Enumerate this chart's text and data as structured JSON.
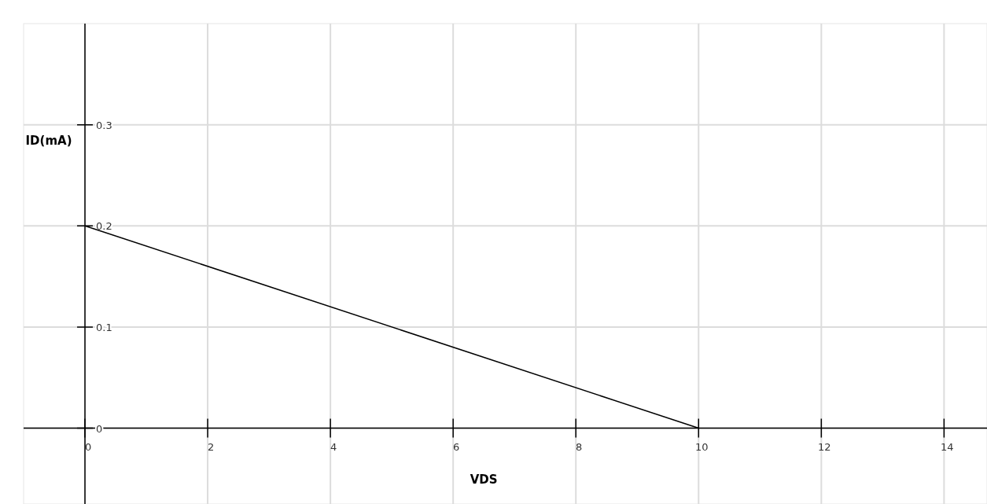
{
  "chart_data": {
    "type": "line",
    "xlabel": "VDS",
    "ylabel": "ID(mA)",
    "x": [
      0,
      10
    ],
    "series": [
      {
        "color": "#000000",
        "values": [
          0.2,
          0
        ]
      }
    ],
    "xlim": [
      -1,
      14.7
    ],
    "ylim": [
      -0.075,
      0.4
    ],
    "xticks": [
      0,
      2,
      4,
      6,
      8,
      10,
      12,
      14
    ],
    "yticks": [
      0,
      0.1,
      0.2,
      0.3
    ],
    "grid": true,
    "marker": "none",
    "line_style": "solid"
  }
}
